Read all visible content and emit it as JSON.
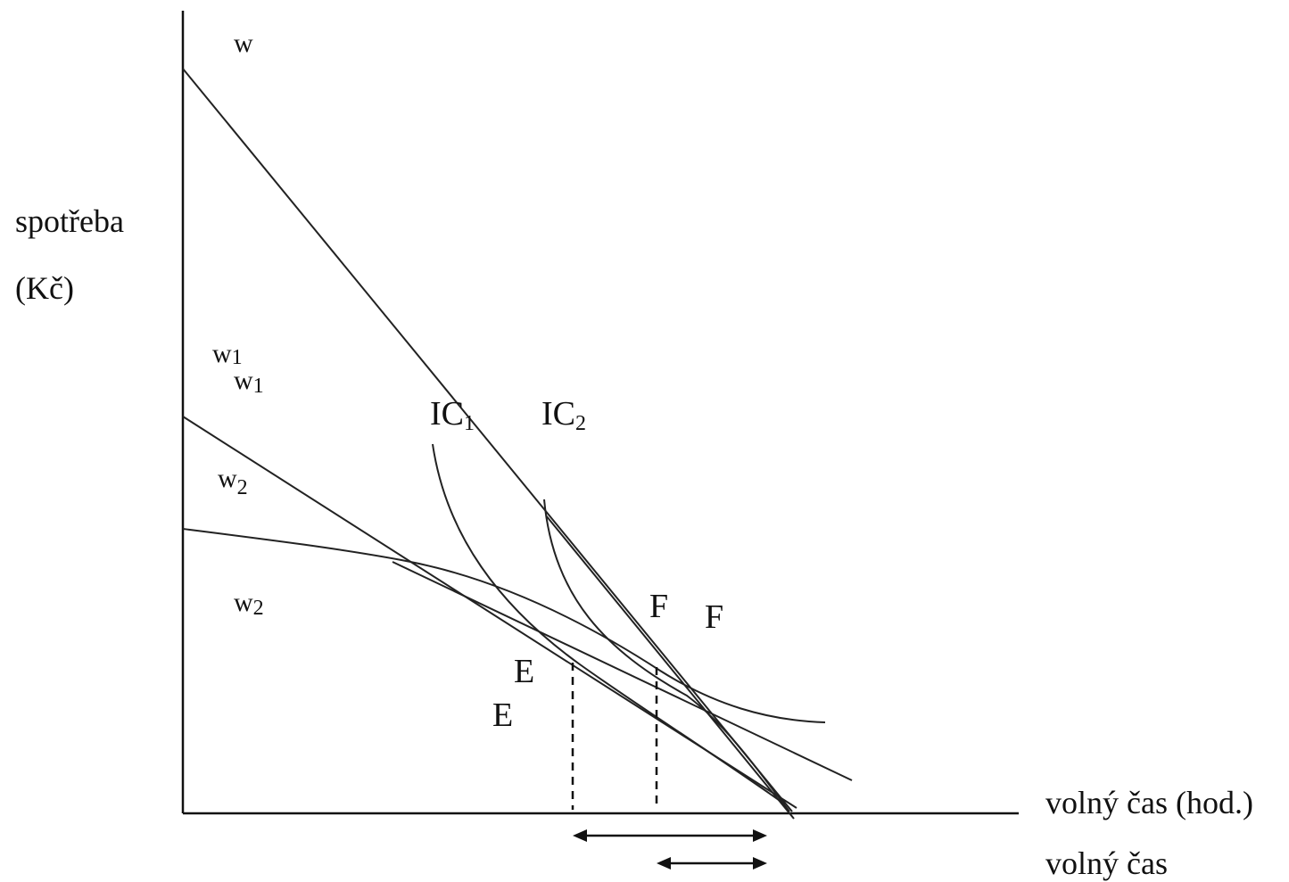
{
  "axes": {
    "y_label_line1": "spotřeba",
    "y_label_line2": "(Kč)",
    "x_label_main": "volný čas (hod.)",
    "x_label_secondary": "volný čas"
  },
  "labels": {
    "w": "w",
    "w1_a": "w",
    "w1_a_sub": "1",
    "w1_b": "w",
    "w1_b_sub": "1",
    "w2_a": "w",
    "w2_a_sub": "2",
    "w2_b": "w",
    "w2_b_sub": "2",
    "ic1": "IC",
    "ic1_sub": "1",
    "ic2": "IC",
    "ic2_sub": "2",
    "e_a": "E",
    "e_b": "E",
    "f_a": "F",
    "f_b": "F"
  }
}
